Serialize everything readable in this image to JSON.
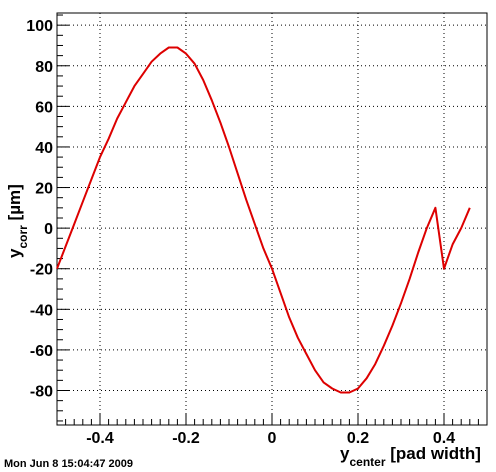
{
  "chart_data": {
    "type": "line",
    "title": "",
    "xlabel": {
      "main": "y",
      "sub": "center",
      "rest": " [pad width]"
    },
    "ylabel": {
      "main": "y",
      "sub": "corr",
      "rest": " [µm]"
    },
    "xlim": [
      -0.5,
      0.5
    ],
    "ylim": [
      -97,
      106
    ],
    "x_ticks": [
      -0.4,
      -0.2,
      0,
      0.2,
      0.4
    ],
    "x_tick_labels": [
      "-0.4",
      "-0.2",
      "0",
      "0.2",
      "0.4"
    ],
    "y_ticks": [
      -80,
      -60,
      -40,
      -20,
      0,
      20,
      40,
      60,
      80,
      100
    ],
    "y_tick_labels": [
      "-80",
      "-60",
      "-40",
      "-20",
      "0",
      "20",
      "40",
      "60",
      "80",
      "100"
    ],
    "grid": true,
    "line_color": "#dd0000",
    "series": [
      {
        "x": [
          -0.5,
          -0.48,
          -0.46,
          -0.44,
          -0.42,
          -0.4,
          -0.38,
          -0.36,
          -0.34,
          -0.32,
          -0.3,
          -0.28,
          -0.26,
          -0.24,
          -0.22,
          -0.2,
          -0.18,
          -0.16,
          -0.14,
          -0.12,
          -0.1,
          -0.08,
          -0.06,
          -0.04,
          -0.02,
          0.0,
          0.02,
          0.04,
          0.06,
          0.08,
          0.1,
          0.12,
          0.14,
          0.16,
          0.18,
          0.2,
          0.22,
          0.24,
          0.26,
          0.28,
          0.3,
          0.32,
          0.34,
          0.36,
          0.38,
          0.4,
          0.42,
          0.44,
          0.46
        ],
        "y": [
          -20,
          -9,
          2,
          13,
          24,
          35,
          44,
          54,
          62,
          70,
          76,
          82,
          86,
          89,
          89,
          86,
          81,
          73,
          63,
          52,
          40,
          27,
          14,
          2,
          -10,
          -20,
          -32,
          -44,
          -54,
          -62,
          -70,
          -76,
          -79,
          -81,
          -81,
          -79,
          -74,
          -67,
          -58,
          -48,
          -37,
          -25,
          -12,
          0,
          10,
          -20,
          -8,
          0,
          10
        ]
      }
    ]
  },
  "timestamp": "Mon Jun  8 15:04:47 2009"
}
